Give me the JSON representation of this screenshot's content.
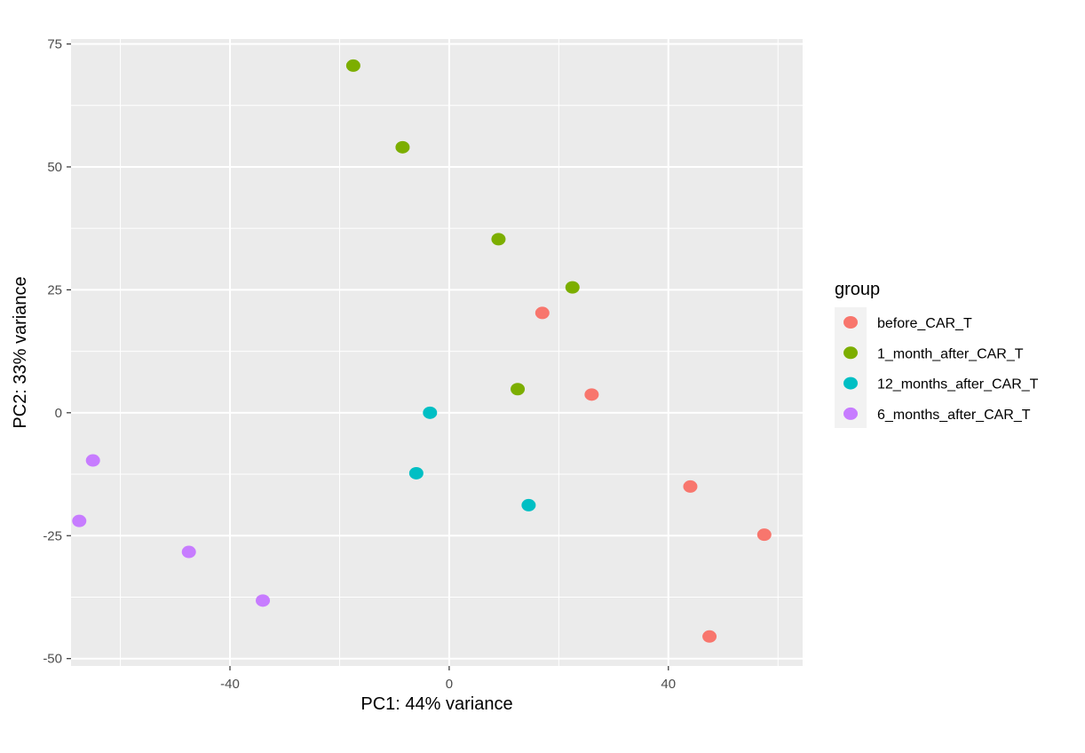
{
  "chart_data": {
    "type": "scatter",
    "xlabel": "PC1: 44% variance",
    "ylabel": "PC2: 33% variance",
    "xlim": [
      -69,
      64.5
    ],
    "ylim": [
      -51.5,
      76
    ],
    "x_ticks": [
      -40,
      0,
      40
    ],
    "x_tick_labels": [
      "-40",
      "0",
      "40"
    ],
    "y_ticks": [
      -50,
      -25,
      0,
      25,
      50,
      75
    ],
    "y_tick_labels": [
      "-50",
      "-25",
      "0",
      "25",
      "50",
      "75"
    ],
    "grid": true,
    "legend": {
      "title": "group",
      "position": "right"
    },
    "series": [
      {
        "name": "before_CAR_T",
        "color": "#F8766D",
        "points": [
          {
            "x": 17,
            "y": 20.3
          },
          {
            "x": 26,
            "y": 3.7
          },
          {
            "x": 44,
            "y": -15.0
          },
          {
            "x": 57.5,
            "y": -24.8
          },
          {
            "x": 47.5,
            "y": -45.5
          }
        ]
      },
      {
        "name": "1_month_after_CAR_T",
        "color": "#7CAE00",
        "points": [
          {
            "x": -17.5,
            "y": 70.6
          },
          {
            "x": -8.5,
            "y": 54.0
          },
          {
            "x": 9,
            "y": 35.3
          },
          {
            "x": 22.5,
            "y": 25.5
          },
          {
            "x": 12.5,
            "y": 4.8
          }
        ]
      },
      {
        "name": "12_months_after_CAR_T",
        "color": "#00BFC4",
        "points": [
          {
            "x": -3.5,
            "y": 0.0
          },
          {
            "x": -6,
            "y": -12.3
          },
          {
            "x": 14.5,
            "y": -18.8
          }
        ]
      },
      {
        "name": "6_months_after_CAR_T",
        "color": "#C77CFF",
        "points": [
          {
            "x": -65,
            "y": -9.7
          },
          {
            "x": -67.5,
            "y": -22.0
          },
          {
            "x": -47.5,
            "y": -28.3
          },
          {
            "x": -34,
            "y": -38.2
          }
        ]
      }
    ]
  }
}
